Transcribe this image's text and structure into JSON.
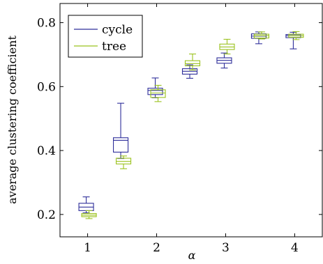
{
  "chart_data": {
    "type": "boxplot",
    "title": "",
    "xlabel": "α",
    "ylabel": "average clustering coefficient",
    "xlim": [
      0.6,
      4.4
    ],
    "ylim": [
      0.13,
      0.86
    ],
    "xticks": [
      1,
      2,
      3,
      4
    ],
    "xtick_labels": [
      "1",
      "2",
      "3",
      "4"
    ],
    "yticks": [
      0.2,
      0.4,
      0.6,
      0.8
    ],
    "ytick_labels": [
      "0.2",
      "0.4",
      "0.6",
      "0.8"
    ],
    "grid": false,
    "legend_position": "top-left",
    "series": [
      {
        "name": "cycle",
        "color": "#2e2e9a",
        "boxes": [
          {
            "x": 1.0,
            "min": 0.205,
            "q1": 0.212,
            "median": 0.223,
            "q3": 0.235,
            "max": 0.255
          },
          {
            "x": 1.5,
            "min": 0.375,
            "q1": 0.395,
            "median": 0.432,
            "q3": 0.44,
            "max": 0.548
          },
          {
            "x": 2.0,
            "min": 0.565,
            "q1": 0.575,
            "median": 0.588,
            "q3": 0.595,
            "max": 0.627
          },
          {
            "x": 2.5,
            "min": 0.626,
            "q1": 0.639,
            "median": 0.648,
            "q3": 0.656,
            "max": 0.668
          },
          {
            "x": 3.0,
            "min": 0.658,
            "q1": 0.673,
            "median": 0.682,
            "q3": 0.69,
            "max": 0.705
          },
          {
            "x": 3.5,
            "min": 0.734,
            "q1": 0.751,
            "median": 0.758,
            "q3": 0.765,
            "max": 0.771
          },
          {
            "x": 4.0,
            "min": 0.718,
            "q1": 0.753,
            "median": 0.759,
            "q3": 0.763,
            "max": 0.77
          }
        ]
      },
      {
        "name": "tree",
        "color": "#9bc21e",
        "boxes": [
          {
            "x": 1.0,
            "min": 0.187,
            "q1": 0.193,
            "median": 0.198,
            "q3": 0.203,
            "max": 0.212
          },
          {
            "x": 1.5,
            "min": 0.343,
            "q1": 0.358,
            "median": 0.366,
            "q3": 0.376,
            "max": 0.383
          },
          {
            "x": 2.0,
            "min": 0.553,
            "q1": 0.566,
            "median": 0.58,
            "q3": 0.59,
            "max": 0.604
          },
          {
            "x": 2.5,
            "min": 0.652,
            "q1": 0.665,
            "median": 0.672,
            "q3": 0.681,
            "max": 0.702
          },
          {
            "x": 3.0,
            "min": 0.702,
            "q1": 0.716,
            "median": 0.724,
            "q3": 0.733,
            "max": 0.748
          },
          {
            "x": 3.5,
            "min": 0.749,
            "q1": 0.752,
            "median": 0.759,
            "q3": 0.764,
            "max": 0.771
          },
          {
            "x": 4.0,
            "min": 0.747,
            "q1": 0.754,
            "median": 0.759,
            "q3": 0.764,
            "max": 0.772
          }
        ]
      }
    ]
  }
}
